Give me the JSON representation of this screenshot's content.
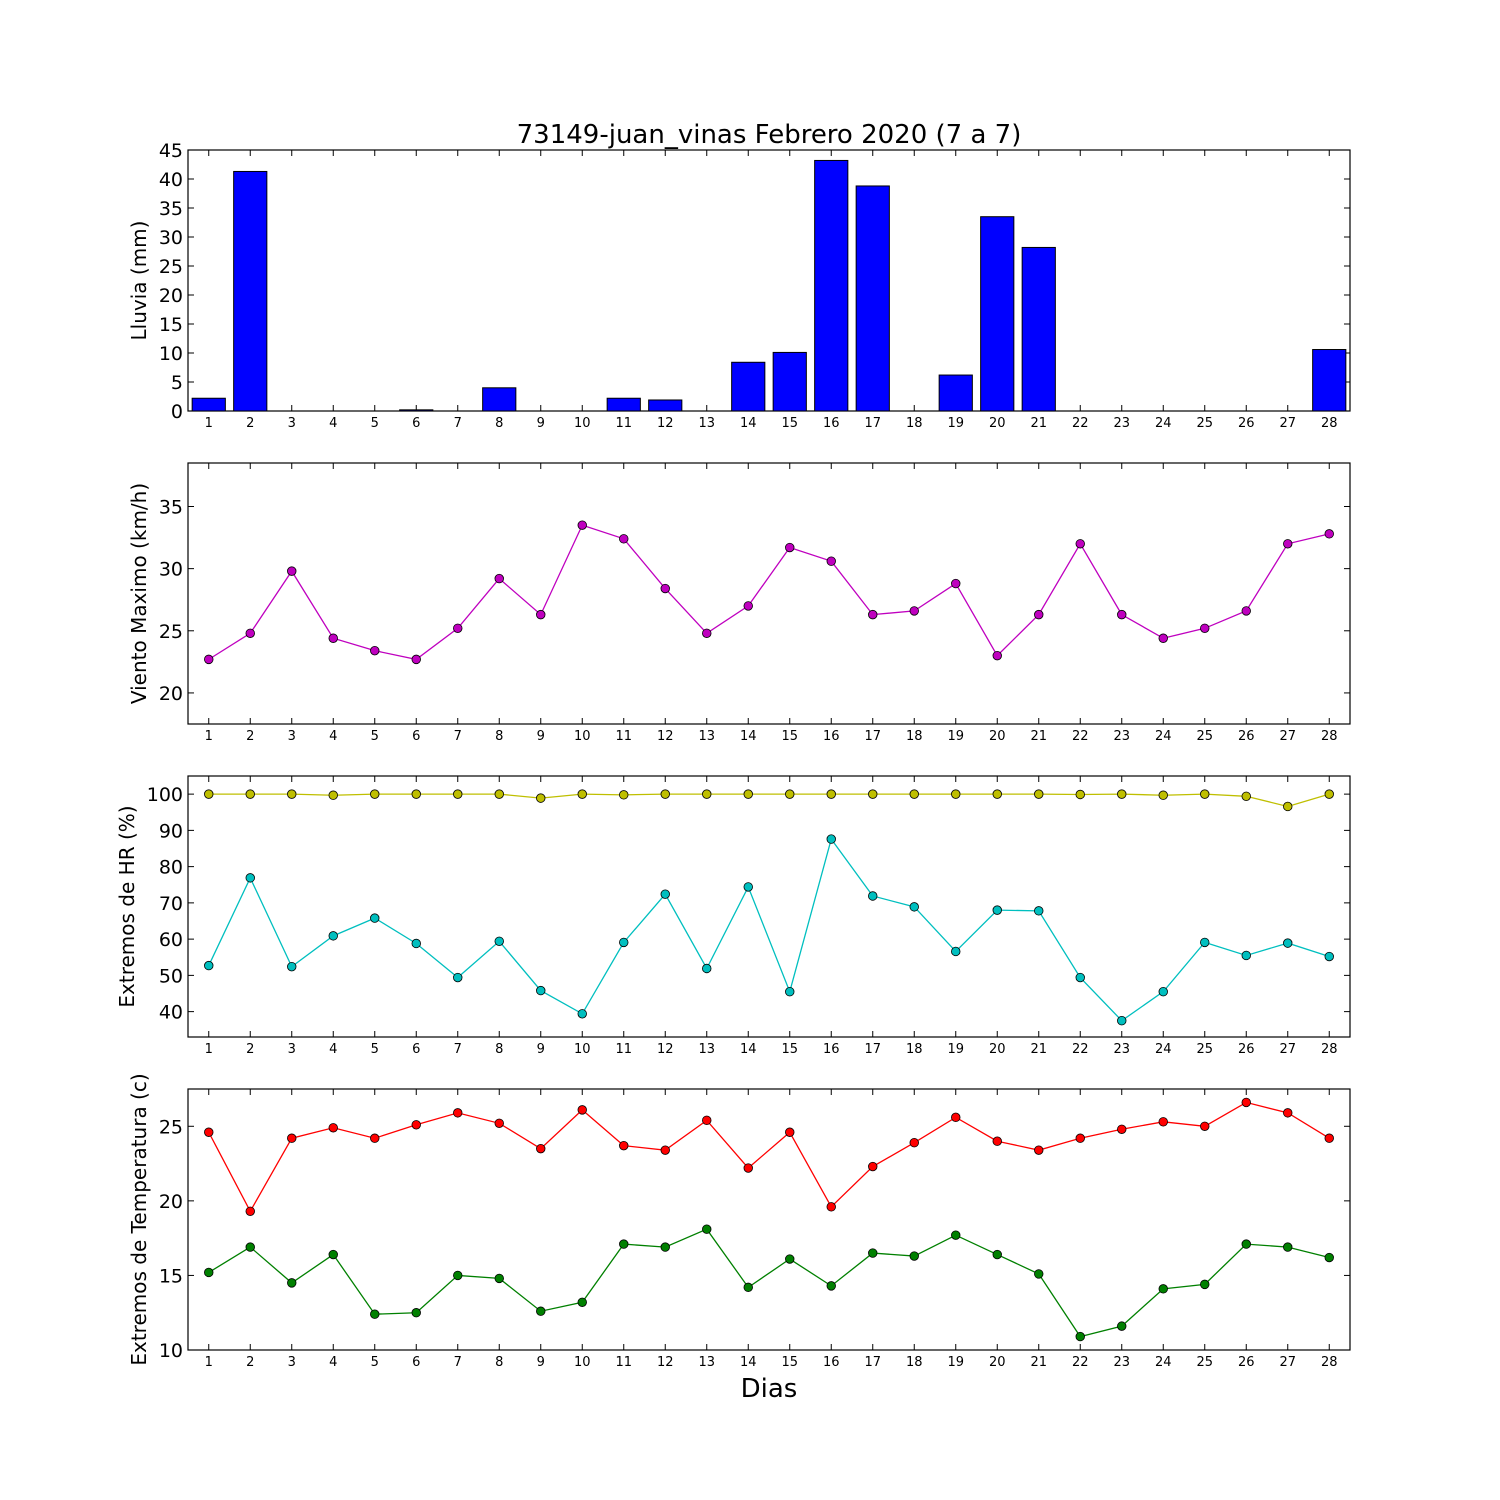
{
  "title": "73149-juan_vinas Febrero 2020  (7 a 7)",
  "xlabel": "Dias",
  "chart_data": [
    {
      "type": "bar",
      "ylabel": "Lluvia (mm)",
      "ylim": [
        0,
        45
      ],
      "yticks": [
        0,
        5,
        10,
        15,
        20,
        25,
        30,
        35,
        40,
        45
      ],
      "x": [
        1,
        2,
        3,
        4,
        5,
        6,
        7,
        8,
        9,
        10,
        11,
        12,
        13,
        14,
        15,
        16,
        17,
        18,
        19,
        20,
        21,
        22,
        23,
        24,
        25,
        26,
        27,
        28
      ],
      "series": [
        {
          "color": "#0000ff",
          "values": [
            2.2,
            41.3,
            0,
            0,
            0,
            0.2,
            0,
            4.0,
            0,
            0,
            2.2,
            1.9,
            0,
            8.4,
            10.1,
            43.2,
            38.8,
            0,
            6.2,
            33.5,
            28.2,
            0,
            0,
            0,
            0,
            0,
            0,
            10.6
          ]
        }
      ]
    },
    {
      "type": "line",
      "ylabel": "Viento Maximo (km/h)",
      "ylim": [
        17.5,
        38.5
      ],
      "yticks": [
        20,
        25,
        30,
        35
      ],
      "x": [
        1,
        2,
        3,
        4,
        5,
        6,
        7,
        8,
        9,
        10,
        11,
        12,
        13,
        14,
        15,
        16,
        17,
        18,
        19,
        20,
        21,
        22,
        23,
        24,
        25,
        26,
        27,
        28
      ],
      "series": [
        {
          "color": "#bf00bf",
          "values": [
            22.7,
            24.8,
            29.8,
            24.4,
            23.4,
            22.7,
            25.2,
            29.2,
            26.3,
            33.5,
            32.4,
            28.4,
            24.8,
            27.0,
            31.7,
            30.6,
            26.3,
            26.6,
            28.8,
            23.0,
            26.3,
            32.0,
            26.3,
            24.4,
            25.2,
            26.6,
            32.0,
            32.8
          ]
        }
      ]
    },
    {
      "type": "line",
      "ylabel": "Extremos de HR (%)",
      "ylim": [
        33,
        105
      ],
      "yticks": [
        40,
        50,
        60,
        70,
        80,
        90,
        100
      ],
      "x": [
        1,
        2,
        3,
        4,
        5,
        6,
        7,
        8,
        9,
        10,
        11,
        12,
        13,
        14,
        15,
        16,
        17,
        18,
        19,
        20,
        21,
        22,
        23,
        24,
        25,
        26,
        27,
        28
      ],
      "series": [
        {
          "color": "#bfbf00",
          "values": [
            100,
            100,
            100,
            99.7,
            100,
            100,
            100,
            100,
            98.9,
            100,
            99.8,
            100,
            100,
            100,
            100,
            100,
            100,
            100,
            100,
            100,
            100,
            99.9,
            100,
            99.7,
            100,
            99.4,
            96.6,
            100
          ]
        },
        {
          "color": "#00bfbf",
          "values": [
            52.7,
            76.9,
            52.4,
            60.9,
            65.8,
            58.8,
            49.4,
            59.4,
            45.8,
            39.4,
            59.1,
            72.4,
            51.9,
            74.4,
            45.5,
            87.6,
            71.9,
            68.9,
            56.6,
            68.0,
            67.8,
            49.4,
            37.5,
            45.5,
            59.1,
            55.5,
            58.9,
            55.2
          ]
        }
      ]
    },
    {
      "type": "line",
      "ylabel": "Extremos de Temperatura (c)",
      "ylim": [
        10,
        27.5
      ],
      "yticks": [
        10,
        15,
        20,
        25
      ],
      "x": [
        1,
        2,
        3,
        4,
        5,
        6,
        7,
        8,
        9,
        10,
        11,
        12,
        13,
        14,
        15,
        16,
        17,
        18,
        19,
        20,
        21,
        22,
        23,
        24,
        25,
        26,
        27,
        28
      ],
      "series": [
        {
          "color": "#ff0000",
          "values": [
            24.6,
            19.3,
            24.2,
            24.9,
            24.2,
            25.1,
            25.9,
            25.2,
            23.5,
            26.1,
            23.7,
            23.4,
            25.4,
            22.2,
            24.6,
            19.6,
            22.3,
            23.9,
            25.6,
            24.0,
            23.4,
            24.2,
            24.8,
            25.3,
            25.0,
            26.6,
            25.9,
            24.2
          ]
        },
        {
          "color": "#008000",
          "values": [
            15.2,
            16.9,
            14.5,
            16.4,
            12.4,
            12.5,
            15.0,
            14.8,
            12.6,
            13.2,
            17.1,
            16.9,
            18.1,
            14.2,
            16.1,
            14.3,
            16.5,
            16.3,
            17.7,
            16.4,
            15.1,
            10.9,
            11.6,
            14.1,
            14.4,
            17.1,
            16.9,
            16.2
          ]
        }
      ]
    }
  ]
}
